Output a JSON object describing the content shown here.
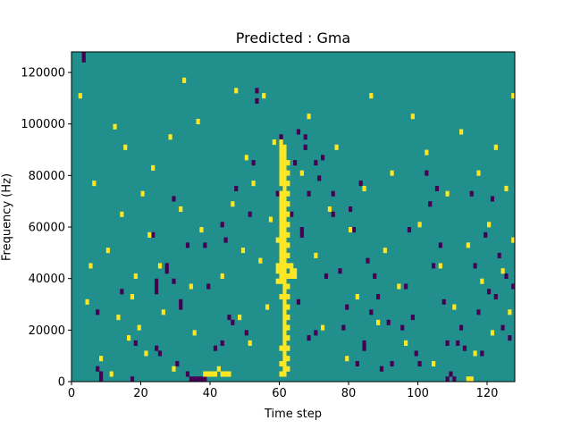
{
  "chart_data": {
    "type": "heatmap",
    "title": "Predicted : Gma",
    "xlabel": "Time step",
    "ylabel": "Frequency (Hz)",
    "xlim": [
      0,
      128
    ],
    "ylim": [
      0,
      128000
    ],
    "xticks": [
      0,
      20,
      40,
      60,
      80,
      100,
      120
    ],
    "yticks": [
      0,
      20000,
      40000,
      60000,
      80000,
      100000,
      120000
    ],
    "grid": false,
    "n_time_steps": 128,
    "n_frequency_bins": 64,
    "frequency_bin_hz": 2000,
    "colors": {
      "background_level": "#21908d",
      "low_level": "#440154",
      "high_level": "#fde725"
    },
    "low_cells": [
      [
        3,
        63
      ],
      [
        3,
        62
      ],
      [
        7,
        13
      ],
      [
        7,
        2
      ],
      [
        8,
        1
      ],
      [
        8,
        0
      ],
      [
        14,
        17
      ],
      [
        17,
        0
      ],
      [
        18,
        7
      ],
      [
        23,
        28
      ],
      [
        24,
        19
      ],
      [
        24,
        18
      ],
      [
        24,
        17
      ],
      [
        24,
        6
      ],
      [
        25,
        5
      ],
      [
        27,
        22
      ],
      [
        27,
        21
      ],
      [
        29,
        35
      ],
      [
        29,
        19
      ],
      [
        30,
        3
      ],
      [
        31,
        15
      ],
      [
        31,
        14
      ],
      [
        33,
        26
      ],
      [
        33,
        1
      ],
      [
        34,
        0
      ],
      [
        35,
        0
      ],
      [
        36,
        0
      ],
      [
        37,
        0
      ],
      [
        38,
        0
      ],
      [
        38,
        26
      ],
      [
        39,
        18
      ],
      [
        41,
        6
      ],
      [
        43,
        7
      ],
      [
        43,
        30
      ],
      [
        44,
        27
      ],
      [
        45,
        12
      ],
      [
        46,
        11
      ],
      [
        47,
        37
      ],
      [
        50,
        9
      ],
      [
        51,
        32
      ],
      [
        52,
        42
      ],
      [
        53,
        54
      ],
      [
        53,
        56
      ],
      [
        59,
        36
      ],
      [
        60,
        47
      ],
      [
        60,
        21
      ],
      [
        61,
        33
      ],
      [
        63,
        32
      ],
      [
        64,
        42
      ],
      [
        65,
        48
      ],
      [
        65,
        15
      ],
      [
        66,
        28
      ],
      [
        66,
        29
      ],
      [
        67,
        47
      ],
      [
        67,
        45
      ],
      [
        68,
        8
      ],
      [
        68,
        36
      ],
      [
        70,
        42
      ],
      [
        70,
        9
      ],
      [
        71,
        39
      ],
      [
        72,
        43
      ],
      [
        73,
        20
      ],
      [
        74,
        33
      ],
      [
        75,
        32
      ],
      [
        75,
        36
      ],
      [
        77,
        21
      ],
      [
        78,
        10
      ],
      [
        79,
        14
      ],
      [
        80,
        33
      ],
      [
        81,
        29
      ],
      [
        82,
        3
      ],
      [
        83,
        38
      ],
      [
        84,
        7
      ],
      [
        84,
        6
      ],
      [
        85,
        23
      ],
      [
        86,
        13
      ],
      [
        87,
        20
      ],
      [
        88,
        16
      ],
      [
        89,
        2
      ],
      [
        91,
        11
      ],
      [
        92,
        3
      ],
      [
        95,
        10
      ],
      [
        96,
        18
      ],
      [
        97,
        29
      ],
      [
        98,
        12
      ],
      [
        99,
        5
      ],
      [
        100,
        3
      ],
      [
        102,
        40
      ],
      [
        103,
        34
      ],
      [
        104,
        22
      ],
      [
        105,
        37
      ],
      [
        106,
        26
      ],
      [
        107,
        15
      ],
      [
        108,
        7
      ],
      [
        108,
        0
      ],
      [
        109,
        1
      ],
      [
        110,
        0
      ],
      [
        111,
        7
      ],
      [
        112,
        10
      ],
      [
        113,
        6
      ],
      [
        115,
        36
      ],
      [
        116,
        22
      ],
      [
        117,
        13
      ],
      [
        118,
        5
      ],
      [
        119,
        28
      ],
      [
        120,
        17
      ],
      [
        121,
        35
      ],
      [
        122,
        16
      ],
      [
        123,
        24
      ],
      [
        124,
        10
      ],
      [
        125,
        20
      ],
      [
        126,
        8
      ],
      [
        127,
        18
      ]
    ],
    "high_cells": [
      [
        2,
        55
      ],
      [
        4,
        15
      ],
      [
        5,
        22
      ],
      [
        6,
        38
      ],
      [
        8,
        4
      ],
      [
        10,
        25
      ],
      [
        11,
        1
      ],
      [
        12,
        49
      ],
      [
        13,
        12
      ],
      [
        14,
        32
      ],
      [
        15,
        45
      ],
      [
        16,
        8
      ],
      [
        17,
        16
      ],
      [
        18,
        20
      ],
      [
        19,
        10
      ],
      [
        20,
        36
      ],
      [
        21,
        5
      ],
      [
        22,
        28
      ],
      [
        23,
        41
      ],
      [
        25,
        22
      ],
      [
        26,
        13
      ],
      [
        28,
        47
      ],
      [
        29,
        2
      ],
      [
        31,
        33
      ],
      [
        32,
        58
      ],
      [
        34,
        18
      ],
      [
        35,
        9
      ],
      [
        36,
        50
      ],
      [
        37,
        29
      ],
      [
        38,
        1
      ],
      [
        39,
        1
      ],
      [
        40,
        1
      ],
      [
        41,
        1
      ],
      [
        42,
        2
      ],
      [
        43,
        1
      ],
      [
        44,
        1
      ],
      [
        45,
        1
      ],
      [
        43,
        20
      ],
      [
        46,
        34
      ],
      [
        47,
        56
      ],
      [
        48,
        12
      ],
      [
        49,
        25
      ],
      [
        50,
        43
      ],
      [
        51,
        7
      ],
      [
        52,
        38
      ],
      [
        54,
        23
      ],
      [
        55,
        55
      ],
      [
        56,
        14
      ],
      [
        57,
        31
      ],
      [
        58,
        46
      ],
      [
        59,
        19
      ],
      [
        59,
        21
      ],
      [
        59,
        22
      ],
      [
        59,
        27
      ],
      [
        60,
        1
      ],
      [
        60,
        3
      ],
      [
        60,
        6
      ],
      [
        60,
        16
      ],
      [
        60,
        19
      ],
      [
        60,
        20
      ],
      [
        60,
        21
      ],
      [
        60,
        22
      ],
      [
        60,
        23
      ],
      [
        60,
        24
      ],
      [
        60,
        25
      ],
      [
        60,
        26
      ],
      [
        60,
        27
      ],
      [
        60,
        28
      ],
      [
        60,
        29
      ],
      [
        60,
        30
      ],
      [
        60,
        31
      ],
      [
        60,
        32
      ],
      [
        60,
        33
      ],
      [
        60,
        34
      ],
      [
        60,
        35
      ],
      [
        60,
        36
      ],
      [
        60,
        38
      ],
      [
        60,
        39
      ],
      [
        60,
        40
      ],
      [
        60,
        41
      ],
      [
        60,
        42
      ],
      [
        60,
        43
      ],
      [
        60,
        44
      ],
      [
        60,
        45
      ],
      [
        60,
        46
      ],
      [
        61,
        1
      ],
      [
        61,
        2
      ],
      [
        61,
        3
      ],
      [
        61,
        4
      ],
      [
        61,
        5
      ],
      [
        61,
        6
      ],
      [
        61,
        7
      ],
      [
        61,
        8
      ],
      [
        61,
        9
      ],
      [
        61,
        10
      ],
      [
        61,
        11
      ],
      [
        61,
        12
      ],
      [
        61,
        13
      ],
      [
        61,
        14
      ],
      [
        61,
        15
      ],
      [
        61,
        16
      ],
      [
        61,
        17
      ],
      [
        61,
        18
      ],
      [
        61,
        19
      ],
      [
        61,
        20
      ],
      [
        61,
        21
      ],
      [
        61,
        22
      ],
      [
        61,
        23
      ],
      [
        61,
        24
      ],
      [
        61,
        25
      ],
      [
        61,
        26
      ],
      [
        61,
        27
      ],
      [
        61,
        28
      ],
      [
        61,
        29
      ],
      [
        61,
        30
      ],
      [
        61,
        31
      ],
      [
        61,
        32
      ],
      [
        61,
        33
      ],
      [
        61,
        34
      ],
      [
        61,
        35
      ],
      [
        61,
        36
      ],
      [
        61,
        37
      ],
      [
        61,
        38
      ],
      [
        61,
        39
      ],
      [
        61,
        40
      ],
      [
        61,
        41
      ],
      [
        61,
        42
      ],
      [
        61,
        43
      ],
      [
        61,
        44
      ],
      [
        61,
        45
      ],
      [
        62,
        2
      ],
      [
        62,
        4
      ],
      [
        62,
        6
      ],
      [
        62,
        8
      ],
      [
        62,
        10
      ],
      [
        62,
        12
      ],
      [
        62,
        14
      ],
      [
        62,
        16
      ],
      [
        62,
        18
      ],
      [
        62,
        20
      ],
      [
        62,
        22
      ],
      [
        62,
        24
      ],
      [
        62,
        26
      ],
      [
        62,
        28
      ],
      [
        62,
        30
      ],
      [
        62,
        32
      ],
      [
        62,
        34
      ],
      [
        62,
        36
      ],
      [
        62,
        38
      ],
      [
        62,
        40
      ],
      [
        62,
        42
      ],
      [
        63,
        20
      ],
      [
        63,
        21
      ],
      [
        63,
        22
      ],
      [
        64,
        20
      ],
      [
        64,
        21
      ],
      [
        66,
        40
      ],
      [
        68,
        51
      ],
      [
        70,
        24
      ],
      [
        72,
        10
      ],
      [
        74,
        33
      ],
      [
        76,
        45
      ],
      [
        79,
        4
      ],
      [
        80,
        29
      ],
      [
        82,
        16
      ],
      [
        84,
        37
      ],
      [
        86,
        55
      ],
      [
        88,
        11
      ],
      [
        90,
        25
      ],
      [
        92,
        40
      ],
      [
        94,
        18
      ],
      [
        96,
        7
      ],
      [
        98,
        51
      ],
      [
        100,
        30
      ],
      [
        102,
        44
      ],
      [
        104,
        3
      ],
      [
        106,
        22
      ],
      [
        108,
        36
      ],
      [
        110,
        14
      ],
      [
        112,
        48
      ],
      [
        114,
        0
      ],
      [
        115,
        0
      ],
      [
        114,
        26
      ],
      [
        116,
        5
      ],
      [
        117,
        40
      ],
      [
        118,
        19
      ],
      [
        120,
        30
      ],
      [
        121,
        9
      ],
      [
        122,
        45
      ],
      [
        124,
        21
      ],
      [
        125,
        37
      ],
      [
        126,
        13
      ],
      [
        127,
        27
      ],
      [
        127,
        55
      ]
    ]
  }
}
